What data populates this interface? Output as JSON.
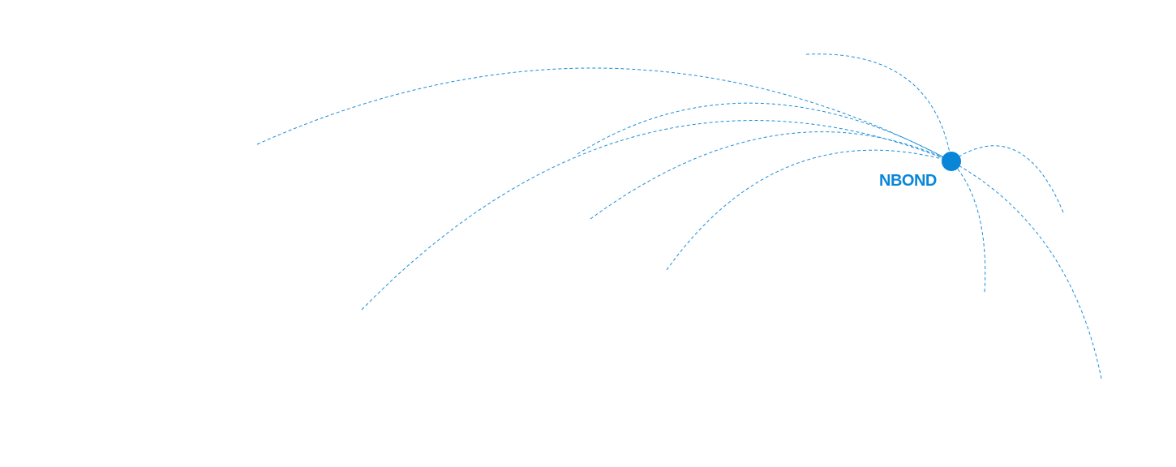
{
  "hub": {
    "label": "NBOND",
    "color": "#0A86D8"
  },
  "connections": {
    "count_label": "",
    "stroke_color": "#1B8FDB",
    "style": "dashed"
  }
}
